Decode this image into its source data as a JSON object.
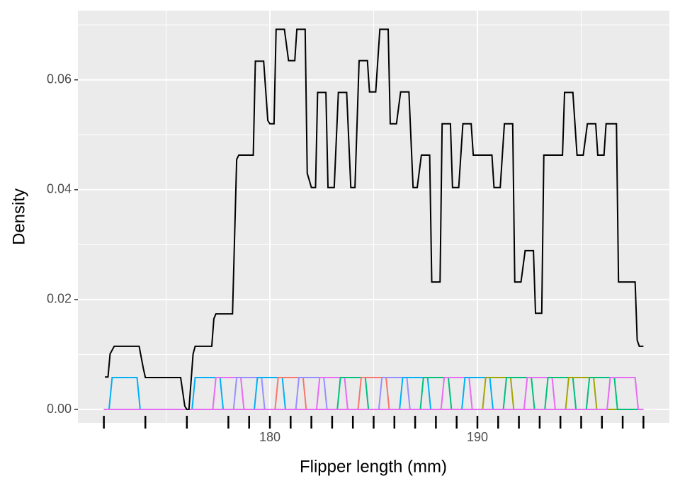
{
  "chart_data": {
    "type": "density",
    "xlabel": "Flipper length (mm)",
    "ylabel": "Density",
    "xlim": [
      170.75,
      199.25
    ],
    "ylim": [
      -0.00245,
      0.0726
    ],
    "xticks": [
      180,
      190
    ],
    "xminor": [
      175,
      185,
      195
    ],
    "yticks": [
      {
        "value": 0,
        "label": "0.00"
      },
      {
        "value": 0.02,
        "label": "0.02"
      },
      {
        "value": 0.04,
        "label": "0.04"
      },
      {
        "value": 0.06,
        "label": "0.06"
      }
    ],
    "yminor": [
      0.01,
      0.03,
      0.05,
      0.07
    ],
    "grid": true,
    "density": {
      "color": "#000000",
      "x": [
        172.05,
        172.2,
        172.3,
        172.5,
        173.7,
        173.9,
        174.0,
        175.7,
        175.9,
        176.0,
        176.1,
        176.3,
        176.4,
        177.2,
        177.3,
        177.4,
        178.2,
        178.4,
        178.5,
        179.2,
        179.3,
        179.7,
        179.9,
        180.0,
        180.2,
        180.3,
        180.7,
        180.9,
        181.2,
        181.3,
        181.7,
        181.8,
        182.0,
        182.2,
        182.3,
        182.7,
        182.8,
        183.1,
        183.3,
        183.7,
        183.9,
        184.1,
        184.3,
        184.7,
        184.8,
        185.1,
        185.3,
        185.7,
        185.8,
        186.1,
        186.3,
        186.7,
        186.9,
        187.1,
        187.3,
        187.7,
        187.8,
        188.2,
        188.3,
        188.7,
        188.8,
        189.1,
        189.3,
        189.7,
        189.8,
        190.7,
        190.8,
        191.1,
        191.3,
        191.7,
        191.8,
        192.1,
        192.3,
        192.7,
        192.8,
        193.1,
        193.2,
        194.1,
        194.2,
        194.6,
        194.8,
        195.1,
        195.3,
        195.7,
        195.8,
        196.1,
        196.2,
        196.7,
        196.8,
        197.6,
        197.7,
        197.8,
        198.0
      ],
      "values": [
        0.0059,
        0.0059,
        0.0101,
        0.0115,
        0.0115,
        0.0075,
        0.0058,
        0.0058,
        0.0006,
        0,
        0,
        0.0101,
        0.0115,
        0.0115,
        0.0165,
        0.0174,
        0.0174,
        0.0455,
        0.0463,
        0.0463,
        0.0634,
        0.0634,
        0.0526,
        0.052,
        0.052,
        0.0692,
        0.0692,
        0.0635,
        0.0635,
        0.0692,
        0.0692,
        0.043,
        0.0404,
        0.0404,
        0.0577,
        0.0577,
        0.0404,
        0.0404,
        0.0577,
        0.0577,
        0.0404,
        0.0404,
        0.0635,
        0.0635,
        0.0578,
        0.0578,
        0.0692,
        0.0692,
        0.052,
        0.052,
        0.0578,
        0.0578,
        0.0404,
        0.0404,
        0.0463,
        0.0463,
        0.0232,
        0.0232,
        0.052,
        0.052,
        0.0404,
        0.0404,
        0.052,
        0.052,
        0.0463,
        0.0463,
        0.0404,
        0.0404,
        0.052,
        0.052,
        0.0232,
        0.0232,
        0.0289,
        0.0289,
        0.0175,
        0.0175,
        0.0463,
        0.0463,
        0.0577,
        0.0577,
        0.0463,
        0.0463,
        0.052,
        0.052,
        0.0463,
        0.0463,
        0.052,
        0.052,
        0.0232,
        0.0232,
        0.0126,
        0.0115,
        0.0115
      ]
    },
    "kernel_height": 0.0058,
    "kernel_halfwidth": 0.75,
    "kernels": [
      {
        "center": 173,
        "color": "#00b0f6"
      },
      {
        "center": 177,
        "color": "#00b0f6"
      },
      {
        "center": 178,
        "color": "#e76bf3"
      },
      {
        "center": 179,
        "color": "#9590ff"
      },
      {
        "center": 180,
        "color": "#00b0f6"
      },
      {
        "center": 181,
        "color": "#f8766d"
      },
      {
        "center": 182,
        "color": "#9590ff"
      },
      {
        "center": 183,
        "color": "#e76bf3"
      },
      {
        "center": 184,
        "color": "#00bf7d"
      },
      {
        "center": 185,
        "color": "#f8766d"
      },
      {
        "center": 186,
        "color": "#9590ff"
      },
      {
        "center": 187,
        "color": "#00b0f6"
      },
      {
        "center": 188,
        "color": "#00bf7d"
      },
      {
        "center": 189,
        "color": "#e76bf3"
      },
      {
        "center": 190,
        "color": "#00b0f6"
      },
      {
        "center": 191,
        "color": "#a3a500"
      },
      {
        "center": 192,
        "color": "#00bf7d"
      },
      {
        "center": 193,
        "color": "#e76bf3"
      },
      {
        "center": 194,
        "color": "#00bf7d"
      },
      {
        "center": 195,
        "color": "#a3a500"
      },
      {
        "center": 196,
        "color": "#00bf7d"
      },
      {
        "center": 197,
        "color": "#e76bf3"
      }
    ],
    "rug": [
      172,
      174,
      176,
      178,
      179,
      180,
      181,
      182,
      183,
      184,
      185,
      186,
      187,
      188,
      189,
      190,
      191,
      192,
      193,
      194,
      195,
      196,
      197,
      198
    ]
  }
}
